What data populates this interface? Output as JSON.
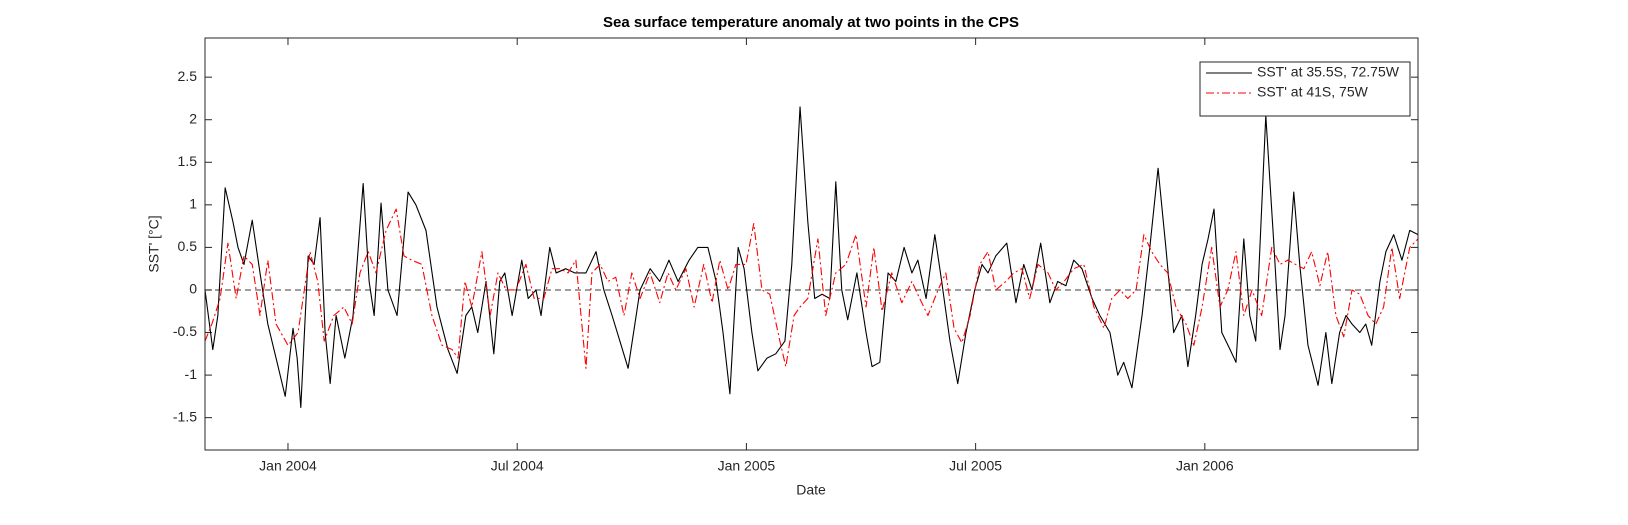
{
  "chart_data": {
    "type": "line",
    "title": "Sea surface temperature anomaly at two points in the CPS",
    "xlabel": "Date",
    "ylabel": "SST' [°C]",
    "xlim": [
      2003.819,
      2006.465
    ],
    "xticks": [
      {
        "value": 2004,
        "label": "Jan 2004"
      },
      {
        "value": 2004.5,
        "label": "Jul 2004"
      },
      {
        "value": 2005,
        "label": "Jan 2005"
      },
      {
        "value": 2005.5,
        "label": "Jul 2005"
      },
      {
        "value": 2006,
        "label": "Jan 2006"
      }
    ],
    "ylim": [
      -1.88,
      2.96
    ],
    "yticks": [
      -1.5,
      -1,
      -0.5,
      0,
      0.5,
      1,
      1.5,
      2,
      2.5
    ],
    "zero_line": true,
    "legend": "northeast",
    "series": [
      {
        "name": "SST' at 35.5S, 72.75W",
        "color": "#000000",
        "linestyle": "-",
        "x": [
          2003.819,
          2003.836,
          2003.847,
          2003.863,
          2003.88,
          2003.891,
          2003.904,
          2003.922,
          2003.939,
          2003.956,
          2003.974,
          2003.994,
          2004.011,
          2004.02,
          2004.028,
          2004.044,
          2004.057,
          2004.07,
          2004.081,
          2004.092,
          2004.105,
          2004.124,
          2004.142,
          2004.164,
          2004.177,
          2004.188,
          2004.203,
          2004.218,
          2004.238,
          2004.262,
          2004.279,
          2004.301,
          2004.325,
          2004.349,
          2004.369,
          2004.388,
          2004.401,
          2004.414,
          2004.432,
          2004.449,
          2004.462,
          2004.473,
          2004.489,
          2004.51,
          2004.524,
          2004.541,
          2004.552,
          2004.571,
          2004.585,
          2004.606,
          2004.626,
          2004.65,
          2004.672,
          2004.689,
          2004.707,
          2004.724,
          2004.742,
          2004.768,
          2004.79,
          2004.811,
          2004.831,
          2004.851,
          2004.875,
          2004.894,
          2004.916,
          2004.934,
          2004.949,
          2004.964,
          2004.982,
          2004.995,
          2005.012,
          2005.025,
          2005.045,
          2005.064,
          2005.084,
          2005.099,
          2005.117,
          2005.134,
          2005.149,
          2005.165,
          2005.182,
          2005.195,
          2005.208,
          2005.221,
          2005.241,
          2005.261,
          2005.274,
          2005.291,
          2005.309,
          2005.326,
          2005.344,
          2005.361,
          2005.374,
          2005.392,
          2005.411,
          2005.426,
          2005.444,
          2005.461,
          2005.479,
          2005.498,
          2005.514,
          2005.527,
          2005.544,
          2005.568,
          2005.588,
          2005.605,
          2005.623,
          2005.642,
          2005.662,
          2005.679,
          2005.697,
          2005.714,
          2005.732,
          2005.754,
          2005.771,
          2005.793,
          2005.81,
          2005.823,
          2005.841,
          2005.863,
          2005.88,
          2005.898,
          2005.915,
          2005.932,
          2005.95,
          2005.963,
          2005.98,
          2005.994,
          2006.007,
          2006.02,
          2006.037,
          2006.055,
          2006.068,
          2006.085,
          2006.098,
          2006.111,
          2006.133,
          2006.151,
          2006.164,
          2006.175,
          2006.194,
          2006.207,
          2006.225,
          2006.247,
          2006.264,
          2006.277,
          2006.294,
          2006.308,
          2006.321,
          2006.338,
          2006.351,
          2006.364,
          2006.382,
          2006.395,
          2006.412,
          2006.43,
          2006.447,
          2006.465
        ],
        "values": [
          0.0,
          -0.7,
          -0.3,
          1.2,
          0.8,
          0.5,
          0.3,
          0.82,
          0.2,
          -0.4,
          -0.8,
          -1.25,
          -0.45,
          -0.8,
          -1.38,
          0.4,
          0.3,
          0.85,
          -0.5,
          -1.1,
          -0.3,
          -0.8,
          -0.3,
          1.25,
          0.1,
          -0.3,
          1.02,
          0.0,
          -0.3,
          1.15,
          1.0,
          0.7,
          -0.2,
          -0.7,
          -0.98,
          -0.3,
          -0.2,
          -0.5,
          0.1,
          -0.75,
          0.1,
          0.2,
          -0.3,
          0.35,
          -0.1,
          0.0,
          -0.3,
          0.5,
          0.2,
          0.25,
          0.2,
          0.2,
          0.45,
          0.0,
          -0.3,
          -0.6,
          -0.92,
          0.0,
          0.25,
          0.1,
          0.35,
          0.1,
          0.35,
          0.5,
          0.5,
          0.1,
          -0.5,
          -1.22,
          0.5,
          0.25,
          -0.5,
          -0.95,
          -0.8,
          -0.75,
          -0.6,
          0.3,
          2.15,
          0.8,
          -0.1,
          -0.05,
          -0.1,
          1.27,
          0.0,
          -0.35,
          0.2,
          -0.5,
          -0.9,
          -0.85,
          0.2,
          0.1,
          0.5,
          0.2,
          0.35,
          -0.1,
          0.65,
          0.1,
          -0.6,
          -1.1,
          -0.5,
          0.0,
          0.3,
          0.2,
          0.4,
          0.55,
          -0.15,
          0.3,
          0.0,
          0.55,
          -0.15,
          0.1,
          0.05,
          0.35,
          0.25,
          -0.1,
          -0.3,
          -0.5,
          -1.0,
          -0.85,
          -1.15,
          -0.3,
          0.5,
          1.43,
          0.5,
          -0.5,
          -0.3,
          -0.9,
          -0.3,
          0.3,
          0.6,
          0.95,
          -0.5,
          -0.7,
          -0.85,
          0.6,
          -0.3,
          -0.6,
          2.05,
          0.5,
          -0.7,
          -0.3,
          1.15,
          0.3,
          -0.65,
          -1.12,
          -0.5,
          -1.1,
          -0.5,
          -0.3,
          -0.4,
          -0.5,
          -0.4,
          -0.65,
          0.1,
          0.45,
          0.65,
          0.35,
          0.7,
          0.65
        ]
      },
      {
        "name": "SST' at 41S, 75W",
        "color": "#ff0000",
        "linestyle": "-.",
        "x": [
          2003.819,
          2003.834,
          2003.852,
          2003.869,
          2003.887,
          2003.904,
          2003.922,
          2003.939,
          2003.956,
          2003.974,
          2004.0,
          2004.022,
          2004.048,
          2004.065,
          2004.079,
          2004.1,
          2004.122,
          2004.14,
          2004.157,
          2004.175,
          2004.192,
          2004.214,
          2004.236,
          2004.253,
          2004.27,
          2004.292,
          2004.314,
          2004.336,
          2004.358,
          2004.371,
          2004.386,
          2004.401,
          2004.423,
          2004.441,
          2004.458,
          2004.476,
          2004.497,
          2004.519,
          2004.537,
          2004.558,
          2004.576,
          2004.593,
          2004.611,
          2004.628,
          2004.65,
          2004.663,
          2004.681,
          2004.698,
          2004.715,
          2004.733,
          2004.75,
          2004.768,
          2004.79,
          2004.811,
          2004.829,
          2004.846,
          2004.868,
          2004.886,
          2004.907,
          2004.925,
          2004.942,
          2004.96,
          2004.977,
          2004.999,
          2005.016,
          2005.034,
          2005.051,
          2005.073,
          2005.086,
          2005.104,
          2005.117,
          2005.134,
          2005.156,
          2005.173,
          2005.195,
          2005.217,
          2005.239,
          2005.261,
          2005.278,
          2005.296,
          2005.317,
          2005.339,
          2005.361,
          2005.378,
          2005.396,
          2005.418,
          2005.435,
          2005.453,
          2005.47,
          2005.488,
          2005.509,
          2005.527,
          2005.544,
          2005.566,
          2005.583,
          2005.601,
          2005.618,
          2005.636,
          2005.658,
          2005.675,
          2005.693,
          2005.714,
          2005.736,
          2005.758,
          2005.78,
          2005.797,
          2005.815,
          2005.832,
          2005.85,
          2005.867,
          2005.884,
          2005.902,
          2005.919,
          2005.937,
          2005.959,
          2005.976,
          2005.994,
          2006.015,
          2006.033,
          2006.05,
          2006.068,
          2006.085,
          2006.103,
          2006.124,
          2006.146,
          2006.164,
          2006.181,
          2006.198,
          2006.216,
          2006.233,
          2006.251,
          2006.268,
          2006.286,
          2006.303,
          2006.321,
          2006.338,
          2006.356,
          2006.373,
          2006.39,
          2006.408,
          2006.425,
          2006.447,
          2006.465
        ],
        "values": [
          -0.6,
          -0.4,
          -0.1,
          0.55,
          -0.1,
          0.4,
          0.3,
          -0.3,
          0.35,
          -0.4,
          -0.65,
          -0.5,
          0.45,
          0.1,
          -0.6,
          -0.3,
          -0.2,
          -0.4,
          0.2,
          0.45,
          0.2,
          0.7,
          0.95,
          0.4,
          0.35,
          0.3,
          -0.3,
          -0.65,
          -0.7,
          -0.8,
          0.1,
          -0.2,
          0.45,
          -0.3,
          0.2,
          0.0,
          0.0,
          0.3,
          -0.1,
          -0.1,
          0.25,
          0.25,
          0.2,
          0.35,
          -0.92,
          0.2,
          0.3,
          0.1,
          0.15,
          -0.3,
          0.2,
          -0.1,
          0.2,
          -0.15,
          0.2,
          0.0,
          0.25,
          -0.2,
          0.3,
          -0.15,
          0.35,
          0.0,
          0.3,
          0.3,
          0.78,
          0.0,
          -0.05,
          -0.6,
          -0.9,
          -0.3,
          -0.2,
          -0.1,
          0.6,
          -0.3,
          0.2,
          0.3,
          0.65,
          -0.2,
          0.5,
          -0.25,
          0.2,
          -0.15,
          0.1,
          -0.1,
          -0.3,
          0.0,
          0.2,
          -0.45,
          -0.62,
          -0.3,
          0.3,
          0.45,
          0.0,
          0.1,
          0.2,
          0.25,
          -0.1,
          0.3,
          0.2,
          0.0,
          0.1,
          0.25,
          0.3,
          -0.2,
          -0.45,
          -0.1,
          0.0,
          -0.1,
          0.0,
          0.65,
          0.45,
          0.3,
          0.2,
          -0.2,
          -0.4,
          -0.65,
          -0.2,
          0.5,
          -0.2,
          0.0,
          0.45,
          -0.3,
          0.0,
          -0.3,
          0.5,
          0.3,
          0.35,
          0.3,
          0.25,
          0.45,
          0.05,
          0.45,
          -0.3,
          -0.55,
          0.0,
          -0.05,
          -0.3,
          -0.4,
          -0.2,
          0.5,
          -0.1,
          0.5,
          0.6
        ]
      }
    ]
  }
}
